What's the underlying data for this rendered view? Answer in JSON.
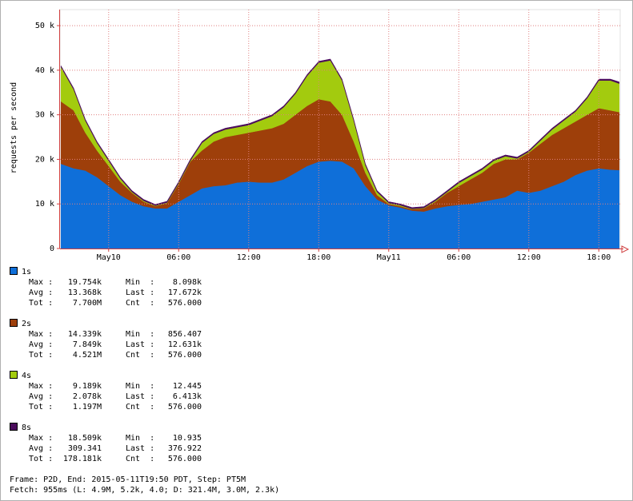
{
  "chart_data": {
    "type": "stacked-area",
    "y_label": "requests per second",
    "x": [
      "2015-05-09T19:55",
      "2015-05-09T21:00",
      "2015-05-09T22:00",
      "2015-05-09T23:00",
      "2015-05-10T00:00",
      "2015-05-10T01:00",
      "2015-05-10T02:00",
      "2015-05-10T03:00",
      "2015-05-10T04:00",
      "2015-05-10T05:00",
      "2015-05-10T06:00",
      "2015-05-10T07:00",
      "2015-05-10T08:00",
      "2015-05-10T09:00",
      "2015-05-10T10:00",
      "2015-05-10T11:00",
      "2015-05-10T12:00",
      "2015-05-10T13:00",
      "2015-05-10T14:00",
      "2015-05-10T15:00",
      "2015-05-10T16:00",
      "2015-05-10T17:00",
      "2015-05-10T18:00",
      "2015-05-10T19:00",
      "2015-05-10T20:00",
      "2015-05-10T21:00",
      "2015-05-10T22:00",
      "2015-05-10T23:00",
      "2015-05-11T00:00",
      "2015-05-11T01:00",
      "2015-05-11T02:00",
      "2015-05-11T03:00",
      "2015-05-11T04:00",
      "2015-05-11T05:00",
      "2015-05-11T06:00",
      "2015-05-11T07:00",
      "2015-05-11T08:00",
      "2015-05-11T09:00",
      "2015-05-11T10:00",
      "2015-05-11T11:00",
      "2015-05-11T12:00",
      "2015-05-11T13:00",
      "2015-05-11T14:00",
      "2015-05-11T15:00",
      "2015-05-11T16:00",
      "2015-05-11T17:00",
      "2015-05-11T18:00",
      "2015-05-11T19:00",
      "2015-05-11T19:45"
    ],
    "xlim": [
      "2015-05-09T19:50",
      "2015-05-11T19:50"
    ],
    "xticks": [
      {
        "value": "2015-05-10T00:00",
        "label": "May10"
      },
      {
        "value": "2015-05-10T06:00",
        "label": "06:00"
      },
      {
        "value": "2015-05-10T12:00",
        "label": "12:00"
      },
      {
        "value": "2015-05-10T18:00",
        "label": "18:00"
      },
      {
        "value": "2015-05-11T00:00",
        "label": "May11"
      },
      {
        "value": "2015-05-11T06:00",
        "label": "06:00"
      },
      {
        "value": "2015-05-11T12:00",
        "label": "12:00"
      },
      {
        "value": "2015-05-11T18:00",
        "label": "18:00"
      }
    ],
    "ylim": [
      0,
      53600
    ],
    "yticks": [
      0,
      {
        "value": 10000,
        "label": "10 k"
      },
      {
        "value": 20000,
        "label": "20 k"
      },
      {
        "value": 30000,
        "label": "30 k"
      },
      {
        "value": 40000,
        "label": "40 k"
      },
      {
        "value": 50000,
        "label": "50 k"
      }
    ],
    "grid": true,
    "series": [
      {
        "name": "1s",
        "color": "#0f6fd9",
        "values": [
          19000,
          18000,
          17500,
          16000,
          14000,
          12000,
          10500,
          9500,
          9000,
          9000,
          10500,
          12000,
          13500,
          14000,
          14200,
          14800,
          15000,
          14800,
          14800,
          15500,
          17000,
          18500,
          19500,
          19700,
          19500,
          18000,
          14000,
          11000,
          9700,
          9200,
          8500,
          8300,
          9000,
          9500,
          9800,
          10000,
          10500,
          11000,
          11500,
          13000,
          12500,
          13000,
          14000,
          15000,
          16500,
          17500,
          18000,
          17700,
          17600
        ],
        "stats": [
          [
            "Max :",
            "19.754k",
            "Min  :",
            "8.098k"
          ],
          [
            "Avg :",
            "13.368k",
            "Last :",
            "17.672k"
          ],
          [
            "Tot :",
            "7.700M",
            "Cnt  :",
            "576.000"
          ]
        ]
      },
      {
        "name": "2s",
        "color": "#9e3f0a",
        "values": [
          14000,
          13000,
          8500,
          6000,
          4500,
          3000,
          2000,
          1000,
          500,
          1200,
          4000,
          7500,
          8500,
          10000,
          10800,
          10700,
          11000,
          11700,
          12200,
          12500,
          13000,
          13500,
          14000,
          13300,
          10500,
          6000,
          3000,
          1000,
          300,
          300,
          300,
          700,
          1500,
          3000,
          4200,
          5500,
          6500,
          8000,
          8500,
          7000,
          9000,
          10500,
          11500,
          12000,
          12000,
          12500,
          13500,
          13300,
          13000
        ],
        "stats": [
          [
            "Max :",
            "14.339k",
            "Min  :",
            "856.407"
          ],
          [
            "Avg :",
            "7.849k",
            "Last :",
            "12.631k"
          ],
          [
            "Tot :",
            "4.521M",
            "Cnt  :",
            "576.000"
          ]
        ]
      },
      {
        "name": "4s",
        "color": "#a3cb0e",
        "values": [
          7700,
          4700,
          2700,
          1700,
          1200,
          700,
          200,
          200,
          100,
          100,
          200,
          200,
          1700,
          1700,
          1700,
          1700,
          1700,
          2200,
          2700,
          3700,
          4700,
          6700,
          8200,
          9200,
          7700,
          4700,
          1700,
          700,
          200,
          200,
          100,
          100,
          200,
          200,
          700,
          700,
          700,
          700,
          700,
          200,
          200,
          700,
          1200,
          1700,
          2200,
          3700,
          6200,
          6700,
          6400
        ],
        "stats": [
          [
            "Max :",
            "9.189k",
            "Min  :",
            "12.445"
          ],
          [
            "Avg :",
            "2.078k",
            "Last :",
            "6.413k"
          ],
          [
            "Tot :",
            "1.197M",
            "Cnt  :",
            "576.000"
          ]
        ]
      },
      {
        "name": "8s",
        "color": "#4b0c5c",
        "values": [
          300,
          300,
          300,
          300,
          300,
          300,
          300,
          300,
          300,
          300,
          300,
          300,
          300,
          300,
          300,
          300,
          300,
          300,
          300,
          300,
          300,
          300,
          300,
          300,
          300,
          300,
          300,
          300,
          300,
          300,
          300,
          300,
          300,
          300,
          300,
          300,
          300,
          300,
          300,
          300,
          300,
          300,
          300,
          300,
          300,
          300,
          300,
          300,
          377
        ],
        "stats": [
          [
            "Max :",
            "18.509k",
            "Min  :",
            "10.935"
          ],
          [
            "Avg :",
            "309.341",
            "Last :",
            "376.922"
          ],
          [
            "Tot :",
            "178.181k",
            "Cnt  :",
            "576.000"
          ]
        ]
      }
    ],
    "footer": [
      "Frame: P2D, End: 2015-05-11T19:50 PDT, Step: PT5M",
      "Fetch: 955ms (L: 4.9M, 5.2k, 4.0; D: 321.4M, 3.0M, 2.3k)"
    ]
  }
}
